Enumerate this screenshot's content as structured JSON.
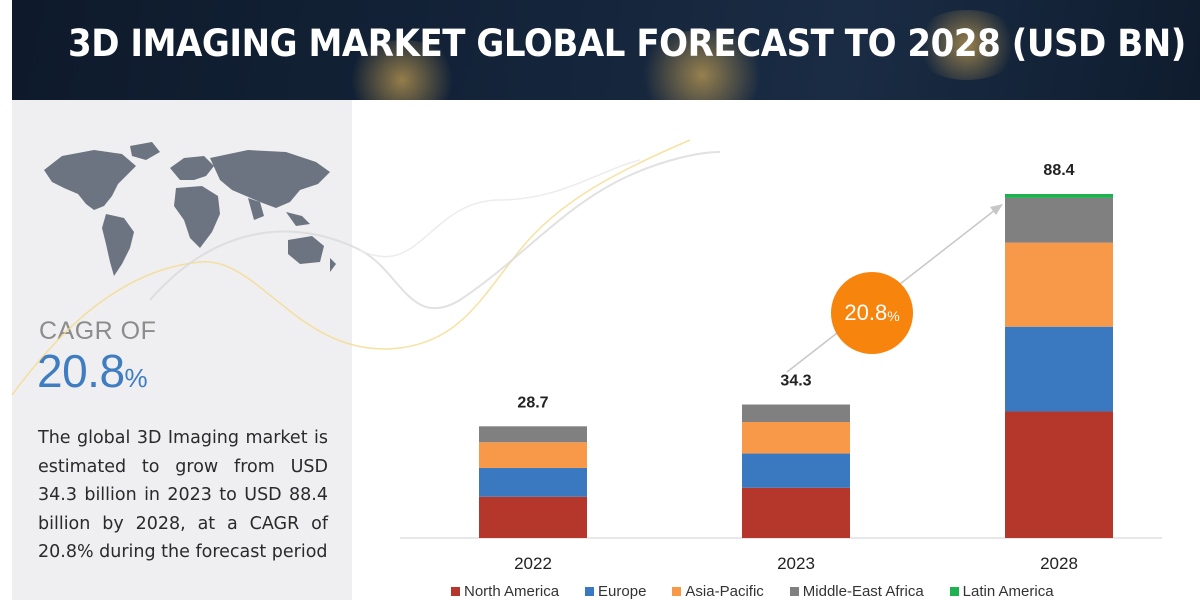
{
  "header": {
    "title": "3D IMAGING MARKET GLOBAL FORECAST TO 2028 (USD BN)"
  },
  "sidebar": {
    "cagr_label": "CAGR OF",
    "cagr_value": "20.8",
    "cagr_unit": "%",
    "description": "The global 3D Imaging market is estimated to grow from USD 34.3 billion in 2023 to USD 88.4 billion by 2028, at a CAGR of 20.8% during the forecast period"
  },
  "badge": {
    "value": "20.8",
    "unit": "%"
  },
  "colors": {
    "header_bg": "#14243a",
    "accent_blue": "#3f7dc1",
    "badge_orange": "#f7840d",
    "North America": "#b5362b",
    "Europe": "#3a78bf",
    "Asia-Pacific": "#f8994a",
    "Middle-East Africa": "#808080",
    "Latin America": "#1eb14f"
  },
  "chart_data": {
    "type": "bar",
    "stacked": true,
    "title": "3D IMAGING MARKET GLOBAL FORECAST TO 2028 (USD BN)",
    "categories": [
      "2022",
      "2023",
      "2028"
    ],
    "totals": [
      28.7,
      34.3,
      88.4
    ],
    "ylim": [
      0,
      88.4
    ],
    "grid": false,
    "legend_position": "bottom",
    "series": [
      {
        "name": "North America",
        "values": [
          10.6,
          12.9,
          32.5
        ]
      },
      {
        "name": "Europe",
        "values": [
          7.4,
          8.8,
          21.8
        ]
      },
      {
        "name": "Asia-Pacific",
        "values": [
          6.6,
          8.1,
          21.6
        ]
      },
      {
        "name": "Middle-East Africa",
        "values": [
          4.1,
          4.5,
          11.5
        ]
      },
      {
        "name": "Latin America",
        "values": [
          0.0,
          0.0,
          1.0
        ]
      }
    ]
  }
}
